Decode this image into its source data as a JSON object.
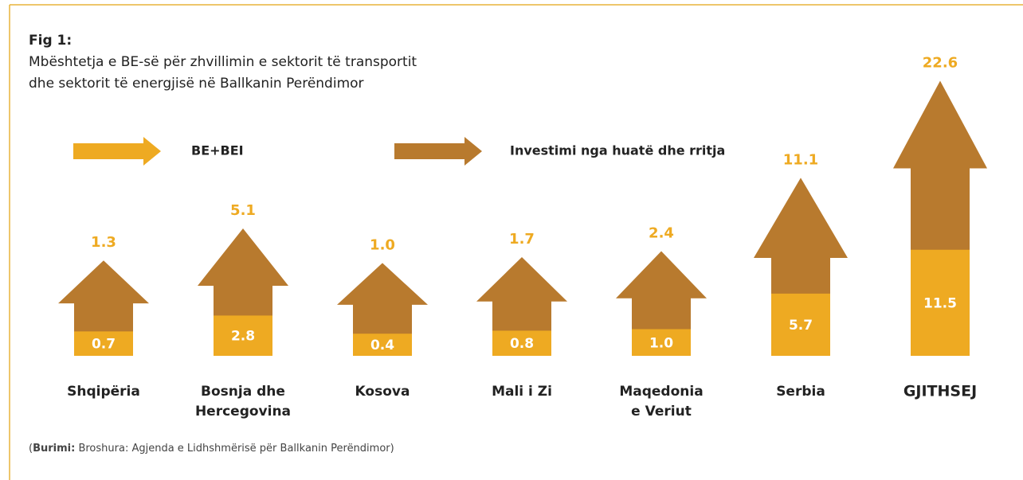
{
  "chart_data": {
    "type": "arrow-bar",
    "title": "Fig 1:",
    "subtitle": [
      "Mbështetja e BE-së për zhvillimin e sektorit të transportit",
      "dhe sektorit të energjisë në Ballkanin Perëndimor"
    ],
    "categories": [
      [
        "Shqipëria"
      ],
      [
        "Bosnja dhe",
        "Hercegovina"
      ],
      [
        "Kosova"
      ],
      [
        "Mali i Zi"
      ],
      [
        "Maqedonia",
        "e Veriut"
      ],
      [
        "Serbia"
      ],
      [
        "GJITHSEJ"
      ]
    ],
    "series": [
      {
        "name": "BE+BEI",
        "color": "#eeaa22",
        "values": [
          0.7,
          2.8,
          0.4,
          0.8,
          1.0,
          5.7,
          11.5
        ],
        "value_labels": [
          "0.7",
          "2.8",
          "0.4",
          "0.8",
          "1.0",
          "5.7",
          "11.5"
        ]
      },
      {
        "name": "Investimi nga huatë dhe rritja",
        "color": "#b87a2e",
        "values": [
          1.3,
          5.1,
          1.0,
          1.7,
          2.4,
          11.1,
          22.6
        ],
        "value_labels": [
          "1.3",
          "5.1",
          "1.0",
          "1.7",
          "2.4",
          "11.1",
          "22.6"
        ]
      }
    ],
    "source": [
      "(",
      "Burimi:",
      " Broshura: Agjenda e Lidhshmërisë për Ballkanin Perëndimor)"
    ]
  }
}
